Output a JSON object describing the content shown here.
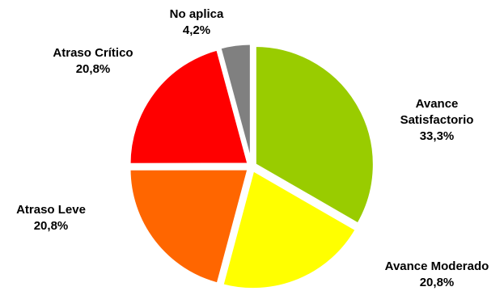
{
  "chart_data": {
    "type": "pie",
    "title": "",
    "slices": [
      {
        "label_lines": [
          "Avance",
          "Satisfactorio"
        ],
        "value_text": "33,3%",
        "value": 33.3,
        "color": "#99CC00"
      },
      {
        "label_lines": [
          "Avance Moderado"
        ],
        "value_text": "20,8%",
        "value": 20.8,
        "color": "#FFFF00"
      },
      {
        "label_lines": [
          "Atraso Leve"
        ],
        "value_text": "20,8%",
        "value": 20.8,
        "color": "#FF6600"
      },
      {
        "label_lines": [
          "Atraso Crítico"
        ],
        "value_text": "20,8%",
        "value": 20.8,
        "color": "#FF0000"
      },
      {
        "label_lines": [
          "No aplica"
        ],
        "value_text": "4,2%",
        "value": 4.2,
        "color": "#808080"
      }
    ]
  }
}
